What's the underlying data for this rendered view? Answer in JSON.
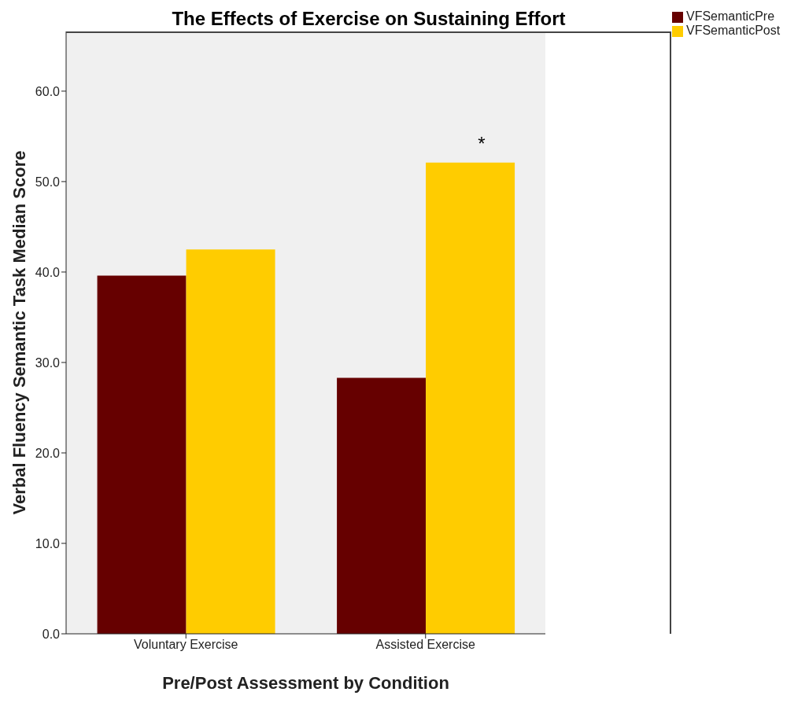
{
  "chart_data": {
    "type": "bar",
    "title": "The Effects of Exercise on Sustaining Effort",
    "xlabel": "Pre/Post Assessment by Condition",
    "ylabel": "Verbal Fluency Semantic Task Median Score",
    "categories": [
      "Voluntary Exercise",
      "Assisted Exercise"
    ],
    "series": [
      {
        "name": "VFSemanticPre",
        "color": "#660000",
        "values": [
          39.6,
          28.3
        ]
      },
      {
        "name": "VFSemanticPost",
        "color": "#ffcc00",
        "values": [
          42.5,
          52.1
        ]
      }
    ],
    "ylim": [
      0,
      66.6
    ],
    "yticks": [
      {
        "value": 0,
        "label": "0.0"
      },
      {
        "value": 10,
        "label": "10.0"
      },
      {
        "value": 20,
        "label": "20.0"
      },
      {
        "value": 30,
        "label": "30.0"
      },
      {
        "value": 40,
        "label": "40.0"
      },
      {
        "value": 50,
        "label": "50.0"
      },
      {
        "value": 60,
        "label": "60.0"
      }
    ],
    "annotations": [
      {
        "text": "*",
        "x": "Assisted Exercise",
        "y": 52.1
      }
    ],
    "grid": false,
    "legend": "top right"
  }
}
